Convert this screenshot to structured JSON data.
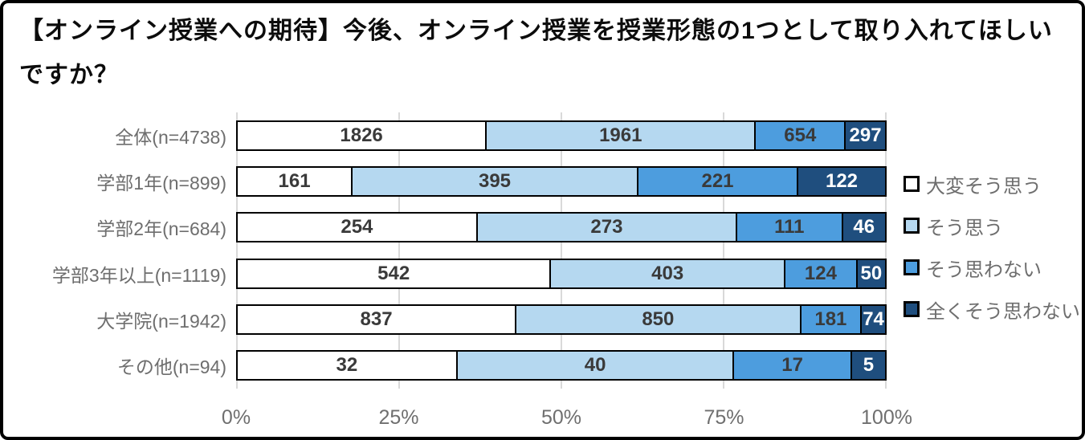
{
  "title": {
    "text": "【オンライン授業への期待】今後、オンライン授業を授業形態の1つとして取り入れてほしいですか？"
  },
  "colors": {
    "frame_border": "#000000",
    "background": "#ffffff",
    "gridline": "#d9d9d9",
    "bar_border": "#000000",
    "category_label_text": "#6e6e6e",
    "axis_label_text": "#6f6f6f",
    "value_label_text": "#3a3a3a",
    "value_label_text_on_dark": "#ffffff"
  },
  "chart_data": {
    "type": "bar",
    "variant": "horizontal-stacked-100pct",
    "title": "【オンライン授業への期待】今後、オンライン授業を授業形態の1つとして取り入れてほしいですか？",
    "categories": [
      "全体(n=4738)",
      "学部1年(n=899)",
      "学部2年(n=684)",
      "学部3年以上(n=1119)",
      "大学院(n=1942)",
      "その他(n=94)"
    ],
    "series": [
      {
        "name": "大変そう思う",
        "color": "#ffffff",
        "values": [
          1826,
          161,
          254,
          542,
          837,
          32
        ]
      },
      {
        "name": "そう思う",
        "color": "#b5d8f0",
        "values": [
          1961,
          395,
          273,
          403,
          850,
          40
        ]
      },
      {
        "name": "そう思わない",
        "color": "#4d9dde",
        "values": [
          654,
          221,
          111,
          124,
          181,
          17
        ]
      },
      {
        "name": "全くそう思わない",
        "color": "#1f4e7e",
        "values": [
          297,
          122,
          46,
          50,
          74,
          5
        ]
      }
    ],
    "x_axis": {
      "tick_labels": [
        "0%",
        "25%",
        "50%",
        "75%",
        "100%"
      ],
      "range": [
        0,
        100
      ],
      "grid": true
    },
    "legend": {
      "position": "right"
    },
    "value_labels": true
  }
}
